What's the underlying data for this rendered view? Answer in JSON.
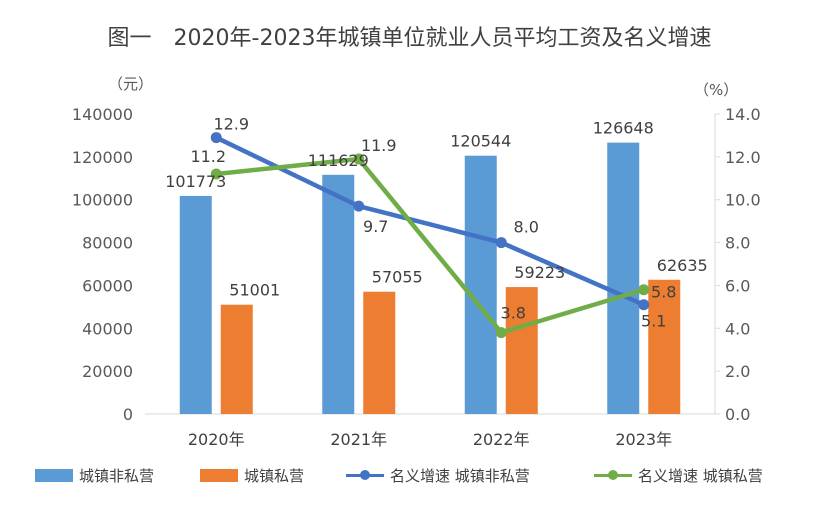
{
  "chart_data": {
    "type": "bar",
    "title": "图一　2020年-2023年城镇单位就业人员平均工资及名义增速",
    "ylabel_left": "（元）",
    "ylabel_right": "（%）",
    "categories": [
      "2020年",
      "2021年",
      "2022年",
      "2023年"
    ],
    "ylim_left": [
      0,
      140000
    ],
    "yticks_left": [
      "0",
      "20000",
      "40000",
      "60000",
      "80000",
      "100000",
      "120000",
      "140000"
    ],
    "ylim_right": [
      0,
      14
    ],
    "yticks_right": [
      "0.0",
      "2.0",
      "4.0",
      "6.0",
      "8.0",
      "10.0",
      "12.0",
      "14.0"
    ],
    "grid": false,
    "legend_position": "bottom",
    "series": [
      {
        "name": "城镇非私营",
        "type": "bar",
        "axis": "left",
        "color": "#5B9BD5",
        "values": [
          101773,
          111629,
          120544,
          126648
        ],
        "labels": [
          "101773",
          "111629",
          "120544",
          "126648"
        ]
      },
      {
        "name": "城镇私营",
        "type": "bar",
        "axis": "left",
        "color": "#ED7D31",
        "values": [
          51001,
          57055,
          59223,
          62635
        ],
        "labels": [
          "51001",
          "57055",
          "59223",
          "62635"
        ]
      },
      {
        "name": "名义增速 城镇非私营",
        "type": "line",
        "axis": "right",
        "color": "#4472C4",
        "values": [
          12.9,
          9.7,
          8.0,
          5.1
        ],
        "labels": [
          "12.9",
          "9.7",
          "8.0",
          "5.1"
        ]
      },
      {
        "name": "名义增速 城镇私营",
        "type": "line",
        "axis": "right",
        "color": "#70AD47",
        "values": [
          11.2,
          11.9,
          3.8,
          5.8
        ],
        "labels": [
          "11.2",
          "11.9",
          "3.8",
          "5.8"
        ]
      }
    ]
  }
}
